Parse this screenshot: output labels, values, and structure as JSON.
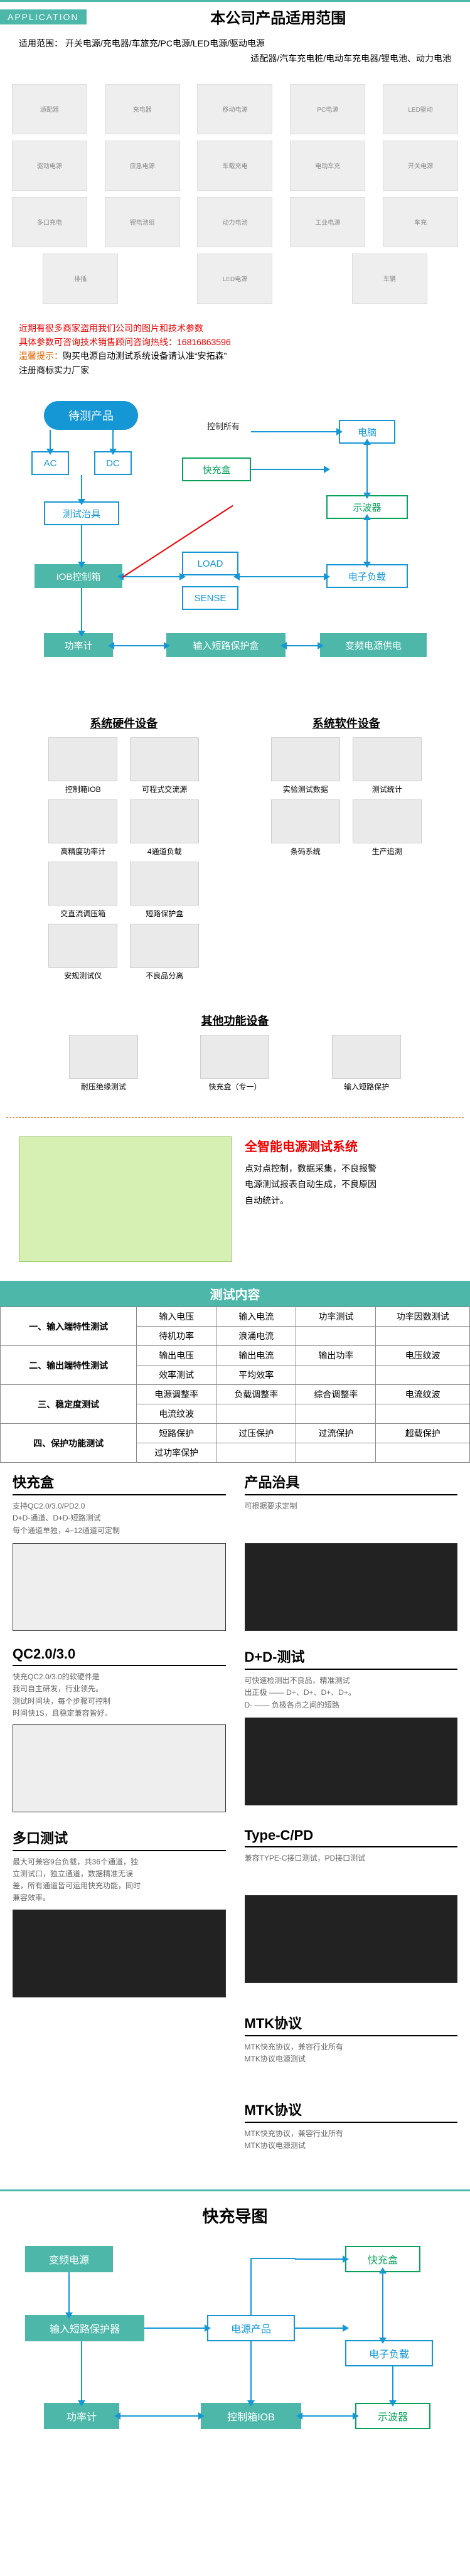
{
  "header": {
    "badge": "APPLICATION",
    "title": "本公司产品适用范围",
    "range_label": "适用范围：",
    "range_line1": "开关电源/充电器/车旅充/PC电源/LED电源/驱动电源",
    "range_line2": "适配器/汽车充电桩/电动车充电器/锂电池、动力电池"
  },
  "products": [
    "适配器",
    "充电器",
    "移动电源",
    "PC电源",
    "LED驱动",
    "驱动电源",
    "应急电源",
    "车载充电",
    "电动车充",
    "开关电源",
    "多口充电",
    "锂电池组",
    "动力电池",
    "工业电源",
    "车充",
    "排插",
    "LED电源",
    "车辆"
  ],
  "warning": {
    "line1_prefix": "近期有很多商家盗用我们公司的图片和技术参数",
    "line2_prefix": "具体参数可咨询技术销售顾问咨询热线：",
    "hotline": "16816863596",
    "line3_label": "温馨提示：",
    "line3_text": "购买电源自动测试系统设备请认准“安拓森”",
    "line4": "注册商标实力厂家"
  },
  "flow1": {
    "product": "待测产品",
    "ac": "AC",
    "dc": "DC",
    "fixture": "测试治具",
    "iob": "IOB控制箱",
    "power_meter": "功率计",
    "fastbox": "快充盒",
    "load": "LOAD",
    "sense": "SENSE",
    "short_box": "输入短路保护盒",
    "pc": "电脑",
    "osc": "示波器",
    "eload": "电子负载",
    "var_power": "变频电源供电",
    "control_all": "控制所有"
  },
  "equipment": {
    "hw_title": "系统硬件设备",
    "sw_title": "系统软件设备",
    "other_title": "其他功能设备",
    "hw": [
      "控制箱IOB",
      "可程式交流源",
      "高精度功率计",
      "4通道负载",
      "交直流调压箱",
      "短路保护盒",
      "安规测试仪",
      "不良品分离"
    ],
    "sw": [
      "实验测试数据",
      "测试统计",
      "条码系统",
      "生产追溯"
    ],
    "other": [
      "耐压绝缘测试",
      "快充盒（专一）",
      "输入短路保护"
    ]
  },
  "smart": {
    "title": "全智能电源测试系统",
    "desc1": "点对点控制，数据采集，不良报警",
    "desc2": "电源测试报表自动生成，不良原因",
    "desc3": "自动统计。"
  },
  "test_table": {
    "header": "测试内容",
    "rows": [
      {
        "head": "一、输入端特性测试",
        "cells": [
          "输入电压",
          "输入电流",
          "功率测试",
          "功率因数测试"
        ]
      },
      {
        "head": "",
        "cells": [
          "待机功率",
          "浪涌电流",
          "",
          ""
        ]
      },
      {
        "head": "二、输出端特性测试",
        "cells": [
          "输出电压",
          "输出电流",
          "输出功率",
          "电压纹波"
        ]
      },
      {
        "head": "",
        "cells": [
          "效率测试",
          "平均效率",
          "",
          ""
        ]
      },
      {
        "head": "三、稳定度测试",
        "cells": [
          "电源调整率",
          "负载调整率",
          "综合调整率",
          "电流纹波"
        ]
      },
      {
        "head": "",
        "cells": [
          "电流纹波",
          "",
          "",
          ""
        ]
      },
      {
        "head": "四、保护功能测试",
        "cells": [
          "短路保护",
          "过压保护",
          "过流保护",
          "超载保护"
        ]
      },
      {
        "head": "",
        "cells": [
          "过功率保护",
          "",
          "",
          ""
        ]
      }
    ]
  },
  "features": [
    {
      "left": {
        "title": "快充盒",
        "desc": "支持QC2.0/3.0/PD2.0\nD+D-通道、D+D-短路测试\n每个通道单独，4~12通道可定制",
        "img": "light"
      },
      "right": {
        "title": "产品治具",
        "desc": "可根据要求定制",
        "img": "dark"
      }
    },
    {
      "left": {
        "title": "QC2.0/3.0",
        "desc": "快充QC2.0/3.0的软硬件是\n我司自主研发，行业领先。\n测试时间块，每个步骤可控制\n时间快1S，且稳定兼容皆好。",
        "img": "light"
      },
      "right": {
        "title": "D+D-测试",
        "desc": "可快速检测出不良品，精准测试\n出正极 —— D+、D+、D+、D+。\nD- —— 负极各点之间的短路",
        "img": "dark"
      }
    },
    {
      "left": {
        "title": "多口测试",
        "desc": "最大可兼容9台负载，共36个通道，独\n立测试口，独立通道，数据精准无误\n差，所有通道皆可运用快充功能，同时\n兼容效率。",
        "img": "dark"
      },
      "right": {
        "title": "Type-C/PD",
        "desc": "兼容TYPE-C接口测试，PD接口测试",
        "img": "dark"
      }
    },
    {
      "left": {
        "title": "",
        "desc": "",
        "img": ""
      },
      "right": {
        "title": "MTK协议",
        "desc": "MTK快充协议，兼容行业所有\nMTK协议电源测试",
        "img": ""
      }
    }
  ],
  "fc_diagram": {
    "title": "快充导图",
    "var_power": "变频电源",
    "fastbox": "快充盒",
    "short_prot": "输入短路保护器",
    "product": "电源产品",
    "power_meter": "功率计",
    "iob": "控制箱IOB",
    "eload": "电子负载",
    "osc": "示波器"
  }
}
